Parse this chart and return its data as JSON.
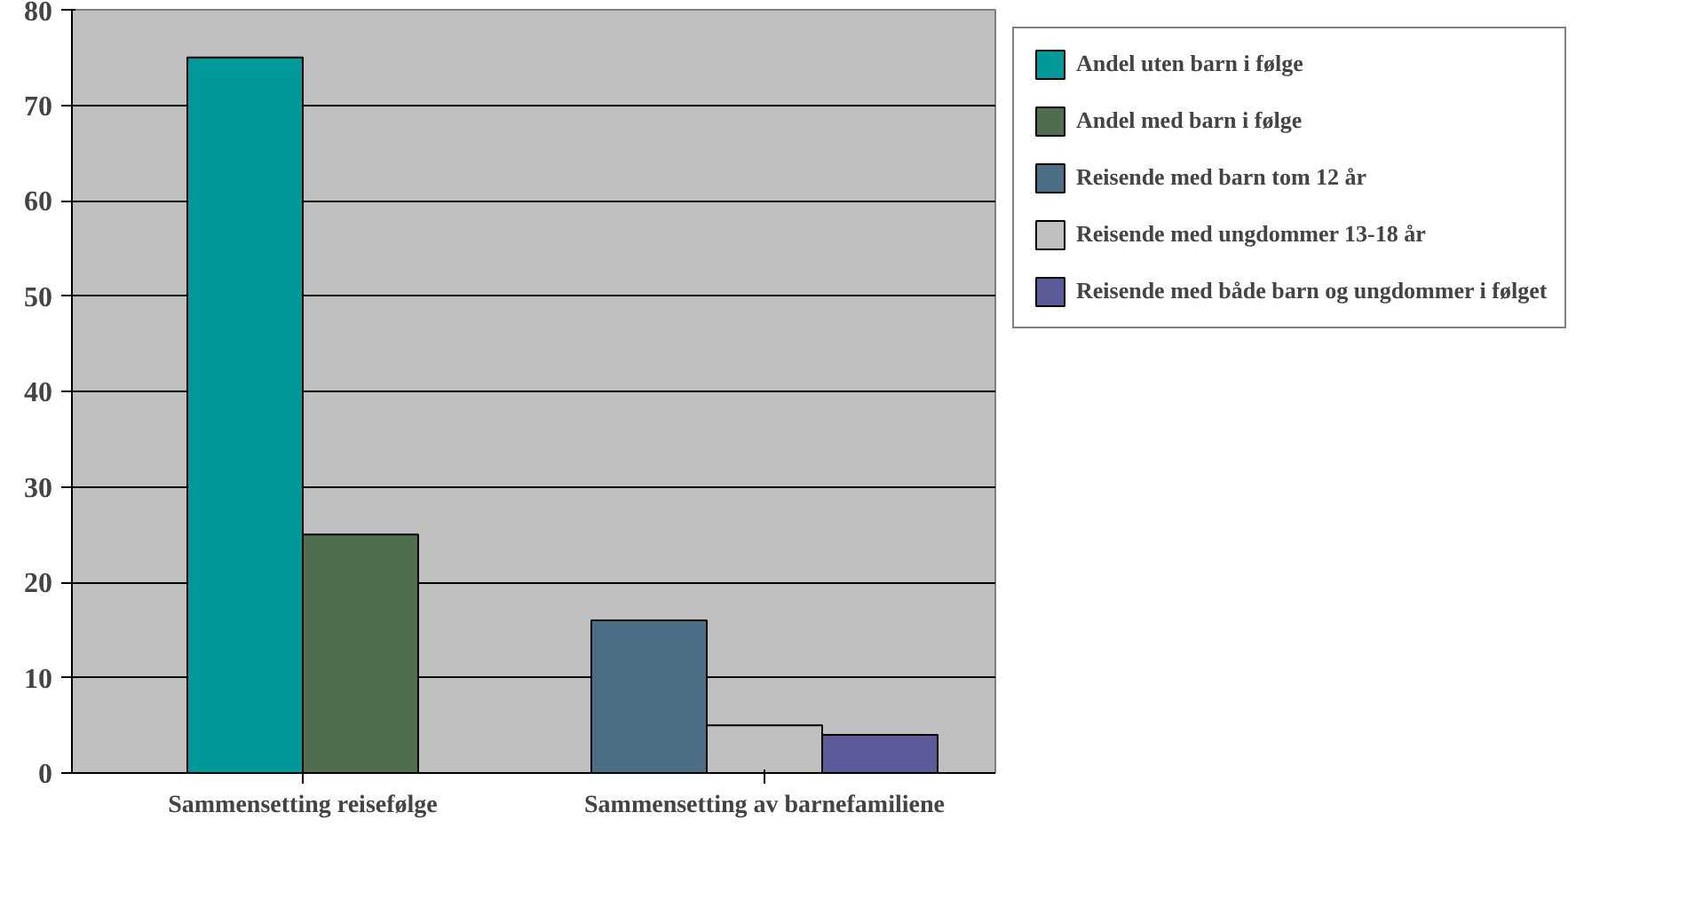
{
  "chart_data": {
    "type": "bar",
    "categories": [
      "Sammensetting reisefølge",
      "Sammensetting av barnefamiliene"
    ],
    "series": [
      {
        "name": "Andel uten barn i følge",
        "color": "#009999",
        "values": [
          75,
          null
        ]
      },
      {
        "name": "Andel med barn i følge",
        "color": "#4f6e4f",
        "values": [
          25,
          null
        ]
      },
      {
        "name": "Reisende med barn tom 12 år",
        "color": "#4a6e85",
        "values": [
          null,
          16
        ]
      },
      {
        "name": "Reisende med ungdommer 13-18 år",
        "color": "#c0c0c0",
        "values": [
          null,
          5
        ]
      },
      {
        "name": "Reisende med både barn og ungdommer i følget",
        "color": "#5b5b99",
        "values": [
          null,
          4
        ]
      }
    ],
    "ylim": [
      0,
      80
    ],
    "yticks": [
      0,
      10,
      20,
      30,
      40,
      50,
      60,
      70,
      80
    ],
    "grid": "y",
    "legend": "right"
  }
}
